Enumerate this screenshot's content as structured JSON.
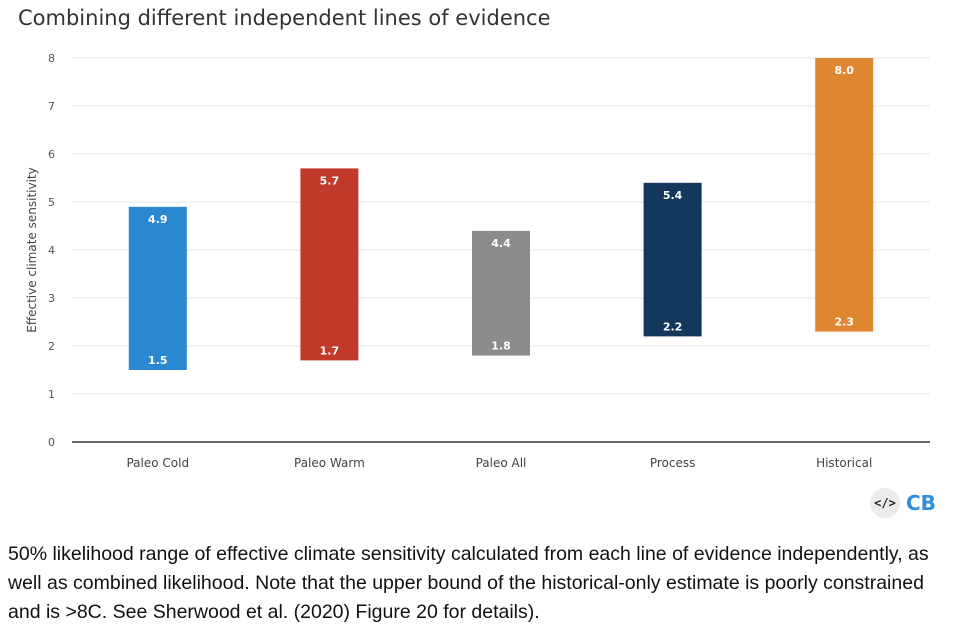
{
  "chart_data": {
    "type": "bar",
    "title": "Combining different independent lines of evidence",
    "ylabel": "Effective climate sensitivity",
    "xlabel": "",
    "ylim": [
      0,
      8
    ],
    "yticks": [
      0,
      1,
      2,
      3,
      4,
      5,
      6,
      7,
      8
    ],
    "grid": true,
    "categories": [
      "Paleo Cold",
      "Paleo Warm",
      "Paleo All",
      "Process",
      "Historical"
    ],
    "ranges": [
      {
        "low": 1.5,
        "high": 4.9,
        "low_label": "1.5",
        "high_label": "4.9",
        "color": "#2a87d0"
      },
      {
        "low": 1.7,
        "high": 5.7,
        "low_label": "1.7",
        "high_label": "5.7",
        "color": "#c0392b"
      },
      {
        "low": 1.8,
        "high": 4.4,
        "low_label": "1.8",
        "high_label": "4.4",
        "color": "#8c8c8c"
      },
      {
        "low": 2.2,
        "high": 5.4,
        "low_label": "2.2",
        "high_label": "5.4",
        "color": "#14375e"
      },
      {
        "low": 2.3,
        "high": 8.0,
        "low_label": "2.3",
        "high_label": "8.0",
        "color": "#df8630"
      }
    ]
  },
  "logo": {
    "code_glyph": "</>",
    "text": "CB"
  },
  "caption": "50% likelihood range of effective climate sensitivity calculated from each line of evidence independently, as well as combined likelihood. Note that the upper bound of the historical-only estimate is poorly constrained and is >8C. See Sherwood et al. (2020) Figure 20 for details)."
}
